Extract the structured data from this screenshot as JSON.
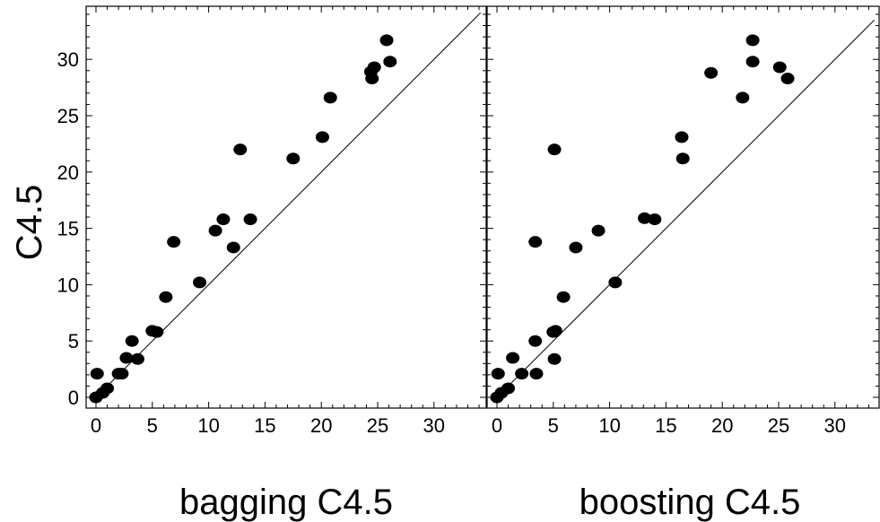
{
  "chart_data": [
    {
      "type": "scatter",
      "title": "",
      "xlabel": "bagging C4.5",
      "ylabel": "C4.5",
      "xlim": [
        -0.5,
        35
      ],
      "ylim": [
        -0.5,
        35
      ],
      "xticks": [
        "0",
        "5",
        "10",
        "15",
        "20",
        "25",
        "30"
      ],
      "yticks": [
        "0",
        "5",
        "10",
        "15",
        "20",
        "25",
        "30"
      ],
      "diagonal": "y = x",
      "points": [
        {
          "x": 0.0,
          "y": 0.0
        },
        {
          "x": 0.1,
          "y": 2.1
        },
        {
          "x": 0.6,
          "y": 0.4
        },
        {
          "x": 1.0,
          "y": 0.8
        },
        {
          "x": 2.0,
          "y": 2.1
        },
        {
          "x": 2.3,
          "y": 2.1
        },
        {
          "x": 2.7,
          "y": 3.5
        },
        {
          "x": 3.2,
          "y": 5.0
        },
        {
          "x": 3.7,
          "y": 3.4
        },
        {
          "x": 5.0,
          "y": 5.9
        },
        {
          "x": 5.4,
          "y": 5.8
        },
        {
          "x": 6.2,
          "y": 8.9
        },
        {
          "x": 6.9,
          "y": 13.8
        },
        {
          "x": 9.2,
          "y": 10.2
        },
        {
          "x": 10.6,
          "y": 14.8
        },
        {
          "x": 11.3,
          "y": 15.8
        },
        {
          "x": 12.2,
          "y": 13.3
        },
        {
          "x": 12.8,
          "y": 22.0
        },
        {
          "x": 13.7,
          "y": 15.8
        },
        {
          "x": 17.5,
          "y": 21.2
        },
        {
          "x": 20.1,
          "y": 23.1
        },
        {
          "x": 20.8,
          "y": 26.6
        },
        {
          "x": 24.4,
          "y": 28.9
        },
        {
          "x": 24.5,
          "y": 28.3
        },
        {
          "x": 24.7,
          "y": 29.3
        },
        {
          "x": 25.8,
          "y": 31.7
        },
        {
          "x": 26.1,
          "y": 29.8
        }
      ]
    },
    {
      "type": "scatter",
      "title": "",
      "xlabel": "boosting C4.5",
      "ylabel": "",
      "xlim": [
        -0.5,
        35
      ],
      "ylim": [
        -0.5,
        35
      ],
      "xticks": [
        "0",
        "5",
        "10",
        "15",
        "20",
        "25",
        "30"
      ],
      "diagonal": "y = x",
      "points": [
        {
          "x": 0.0,
          "y": 0.0
        },
        {
          "x": 0.1,
          "y": 2.1
        },
        {
          "x": 0.4,
          "y": 0.4
        },
        {
          "x": 1.0,
          "y": 0.8
        },
        {
          "x": 1.4,
          "y": 3.5
        },
        {
          "x": 2.2,
          "y": 2.1
        },
        {
          "x": 3.4,
          "y": 5.0
        },
        {
          "x": 3.4,
          "y": 13.8
        },
        {
          "x": 3.5,
          "y": 2.1
        },
        {
          "x": 5.0,
          "y": 5.8
        },
        {
          "x": 5.1,
          "y": 3.4
        },
        {
          "x": 5.1,
          "y": 22.0
        },
        {
          "x": 5.2,
          "y": 5.9
        },
        {
          "x": 5.9,
          "y": 8.9
        },
        {
          "x": 7.0,
          "y": 13.3
        },
        {
          "x": 9.0,
          "y": 14.8
        },
        {
          "x": 10.5,
          "y": 10.2
        },
        {
          "x": 13.1,
          "y": 15.9
        },
        {
          "x": 14.0,
          "y": 15.8
        },
        {
          "x": 16.4,
          "y": 23.1
        },
        {
          "x": 16.5,
          "y": 21.2
        },
        {
          "x": 19.0,
          "y": 28.8
        },
        {
          "x": 21.8,
          "y": 26.6
        },
        {
          "x": 22.7,
          "y": 31.7
        },
        {
          "x": 22.7,
          "y": 29.8
        },
        {
          "x": 25.1,
          "y": 29.3
        },
        {
          "x": 25.8,
          "y": 28.3
        }
      ]
    }
  ]
}
